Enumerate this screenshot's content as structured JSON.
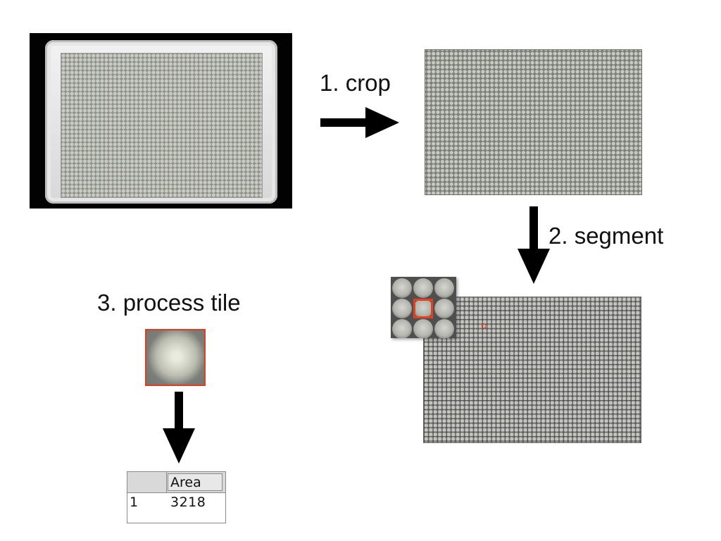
{
  "steps": {
    "crop": {
      "label": "1. crop"
    },
    "segment": {
      "label": "2. segment"
    },
    "process_tile": {
      "label": "3. process tile"
    }
  },
  "result_table": {
    "header": "Area",
    "rows": [
      {
        "index": "1",
        "area": "3218"
      }
    ]
  },
  "colors": {
    "highlight": "#e2462a",
    "arrow": "#000000",
    "background": "#ffffff"
  }
}
